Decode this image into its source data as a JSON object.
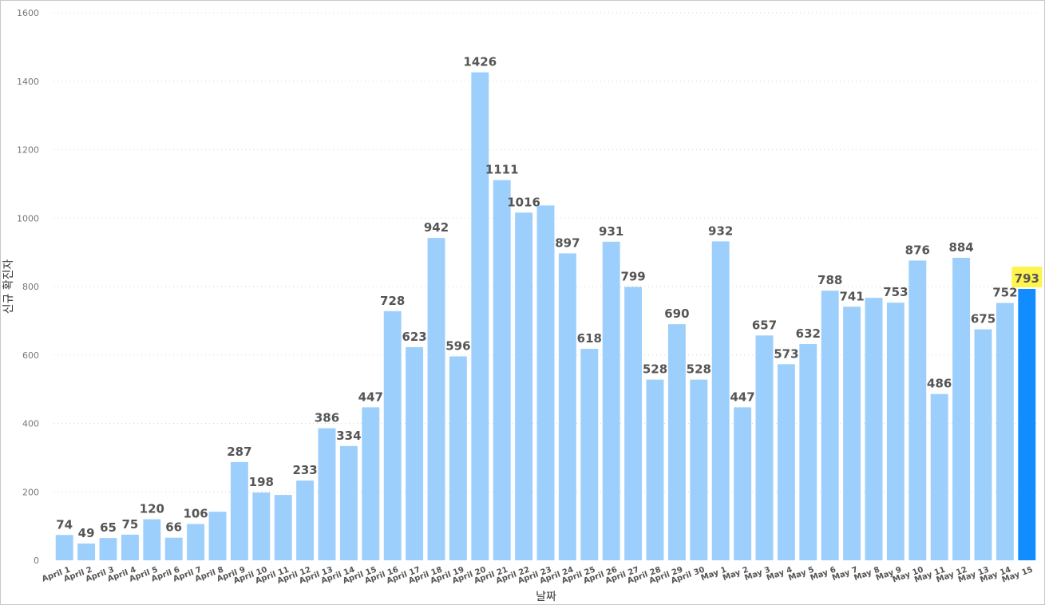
{
  "chart_data": {
    "type": "bar",
    "xlabel": "날짜",
    "ylabel": "신규 확진자",
    "ylim": [
      0,
      1600
    ],
    "yticks": [
      0,
      200,
      400,
      600,
      800,
      1000,
      1200,
      1400,
      1600
    ],
    "grid": true,
    "categories": [
      "April 1",
      "April 2",
      "April 3",
      "April 4",
      "April 5",
      "April 6",
      "April 7",
      "April 8",
      "April 9",
      "April 10",
      "April 11",
      "April 12",
      "April 13",
      "April 14",
      "April 15",
      "April 16",
      "April 17",
      "April 18",
      "April 19",
      "April 20",
      "April 21",
      "April 22",
      "April 23",
      "April 24",
      "April 25",
      "April 26",
      "April 27",
      "April 28",
      "April 29",
      "April 30",
      "May 1",
      "May 2",
      "May 3",
      "May 4",
      "May 5",
      "May 6",
      "May 7",
      "May 8",
      "May 9",
      "May 10",
      "May 11",
      "May 12",
      "May 13",
      "May 14",
      "May 15"
    ],
    "values": [
      74,
      49,
      65,
      75,
      120,
      66,
      106,
      142,
      287,
      198,
      191,
      233,
      386,
      334,
      447,
      728,
      623,
      942,
      596,
      1426,
      1111,
      1016,
      1037,
      897,
      618,
      931,
      799,
      528,
      690,
      528,
      932,
      447,
      657,
      573,
      632,
      788,
      741,
      767,
      753,
      876,
      486,
      884,
      675,
      752,
      793
    ],
    "data_labels": [
      "74",
      "49",
      "65",
      "75",
      "120",
      "66",
      "106",
      "",
      "287",
      "198",
      "",
      "233",
      "386",
      "334",
      "447",
      "728",
      "623",
      "942",
      "596",
      "1426",
      "1111",
      "1016",
      "",
      "897",
      "618",
      "931",
      "799",
      "528",
      "690",
      "528",
      "932",
      "447",
      "657",
      "573",
      "632",
      "788",
      "741",
      "",
      "753",
      "876",
      "486",
      "884",
      "675",
      "752",
      "793"
    ],
    "highlight_index": 44,
    "colors": {
      "bar": "#9dcffc",
      "highlight_bar": "#118dff",
      "highlight_label_bg": "#fff34d",
      "label_text": "#555555"
    }
  }
}
